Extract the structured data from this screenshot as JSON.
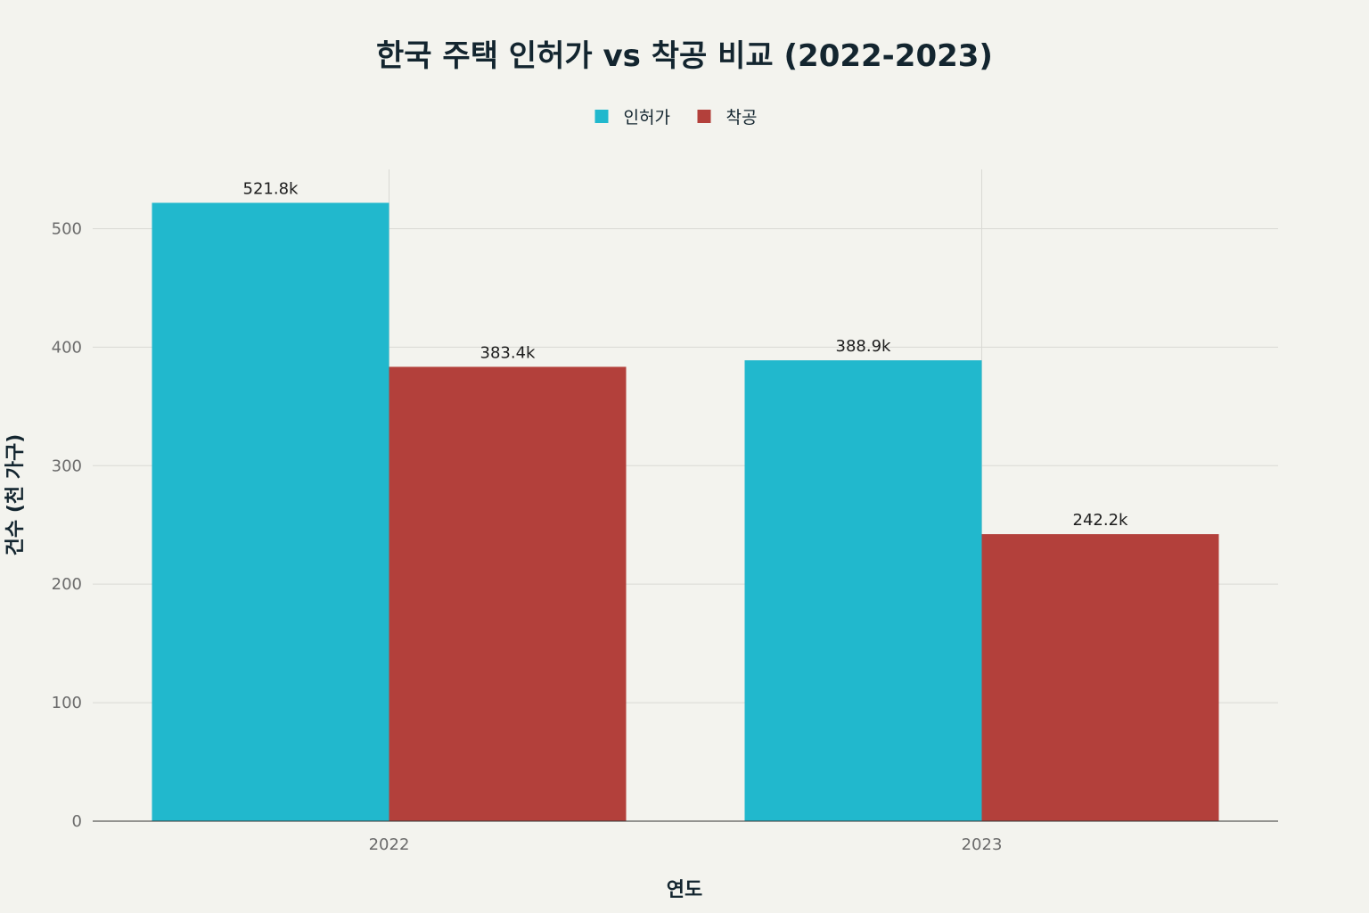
{
  "chart_data": {
    "type": "bar",
    "title": "한국 주택 인허가 vs 착공 비교 (2022-2023)",
    "xlabel": "연도",
    "ylabel": "건수 (천 가구)",
    "categories": [
      "2022",
      "2023"
    ],
    "series": [
      {
        "name": "인허가",
        "color": "#21b8cd",
        "values": [
          521.8,
          388.9
        ],
        "labels": [
          "521.8k",
          "388.9k"
        ]
      },
      {
        "name": "착공",
        "color": "#b3403b",
        "values": [
          383.4,
          242.2
        ],
        "labels": [
          "383.4k",
          "242.2k"
        ]
      }
    ],
    "ylim": [
      0,
      550
    ],
    "yticks": [
      0,
      100,
      200,
      300,
      400,
      500
    ],
    "grid": true,
    "legend_position": "top-center"
  }
}
